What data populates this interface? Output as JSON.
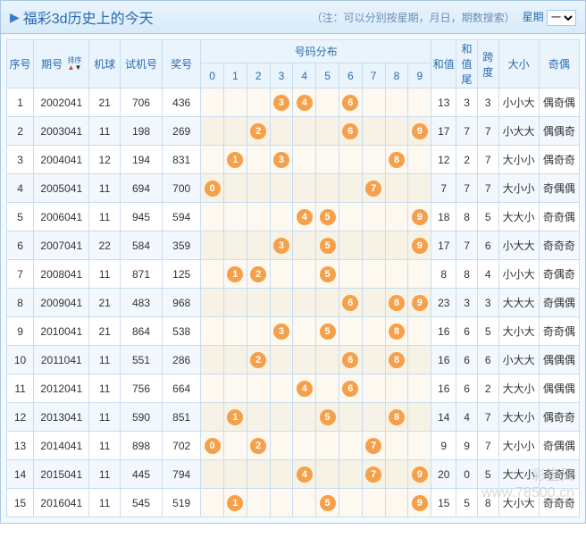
{
  "window": {
    "title": "福彩3d历史上的今天",
    "note": "（注：可以分别按星期，月日，期数搜索）",
    "weekday_label": "星期",
    "weekday_value": "一"
  },
  "colors": {
    "ball_bg": "#f5a04a",
    "header_bg": "#eaf4fd",
    "dist_bg": "#fdf9f0",
    "alt_bg": "#f2f8fd",
    "border": "#c8ddf0",
    "title_text": "#2a6bb0"
  },
  "headers": {
    "seq": "序号",
    "issue": "期号",
    "sort": "排序",
    "mball": "机球",
    "trial": "试机号",
    "prize": "奖号",
    "dist_group": "号码分布",
    "dist_nums": [
      "0",
      "1",
      "2",
      "3",
      "4",
      "5",
      "6",
      "7",
      "8",
      "9"
    ],
    "sum": "和值",
    "tail": "和值尾",
    "span": "跨度",
    "size": "大小",
    "oe": "奇偶"
  },
  "rows": [
    {
      "seq": 1,
      "issue": "2002041",
      "mball": 21,
      "trial": "706",
      "prize": "436",
      "balls": [
        4,
        3,
        6
      ],
      "sum": 13,
      "tail": 3,
      "span": 3,
      "size": "小小大",
      "oe": "偶奇偶"
    },
    {
      "seq": 2,
      "issue": "2003041",
      "mball": 11,
      "trial": "198",
      "prize": "269",
      "balls": [
        2,
        6,
        9
      ],
      "sum": 17,
      "tail": 7,
      "span": 7,
      "size": "小大大",
      "oe": "偶偶奇"
    },
    {
      "seq": 3,
      "issue": "2004041",
      "mball": 12,
      "trial": "194",
      "prize": "831",
      "balls": [
        8,
        3,
        1
      ],
      "sum": 12,
      "tail": 2,
      "span": 7,
      "size": "大小小",
      "oe": "偶奇奇"
    },
    {
      "seq": 4,
      "issue": "2005041",
      "mball": 11,
      "trial": "694",
      "prize": "700",
      "balls": [
        7,
        0,
        0
      ],
      "sum": 7,
      "tail": 7,
      "span": 7,
      "size": "大小小",
      "oe": "奇偶偶"
    },
    {
      "seq": 5,
      "issue": "2006041",
      "mball": 11,
      "trial": "945",
      "prize": "594",
      "balls": [
        5,
        9,
        4
      ],
      "sum": 18,
      "tail": 8,
      "span": 5,
      "size": "大大小",
      "oe": "奇奇偶"
    },
    {
      "seq": 6,
      "issue": "2007041",
      "mball": 22,
      "trial": "584",
      "prize": "359",
      "balls": [
        3,
        5,
        9
      ],
      "sum": 17,
      "tail": 7,
      "span": 6,
      "size": "小大大",
      "oe": "奇奇奇"
    },
    {
      "seq": 7,
      "issue": "2008041",
      "mball": 11,
      "trial": "871",
      "prize": "125",
      "balls": [
        1,
        2,
        5
      ],
      "sum": 8,
      "tail": 8,
      "span": 4,
      "size": "小小大",
      "oe": "奇偶奇"
    },
    {
      "seq": 8,
      "issue": "2009041",
      "mball": 21,
      "trial": "483",
      "prize": "968",
      "balls": [
        9,
        6,
        8
      ],
      "sum": 23,
      "tail": 3,
      "span": 3,
      "size": "大大大",
      "oe": "奇偶偶"
    },
    {
      "seq": 9,
      "issue": "2010041",
      "mball": 21,
      "trial": "864",
      "prize": "538",
      "balls": [
        5,
        3,
        8
      ],
      "sum": 16,
      "tail": 6,
      "span": 5,
      "size": "大小大",
      "oe": "奇奇偶"
    },
    {
      "seq": 10,
      "issue": "2011041",
      "mball": 11,
      "trial": "551",
      "prize": "286",
      "balls": [
        2,
        8,
        6
      ],
      "sum": 16,
      "tail": 6,
      "span": 6,
      "size": "小大大",
      "oe": "偶偶偶"
    },
    {
      "seq": 11,
      "issue": "2012041",
      "mball": 11,
      "trial": "756",
      "prize": "664",
      "balls": [
        6,
        6,
        4
      ],
      "sum": 16,
      "tail": 6,
      "span": 2,
      "size": "大大小",
      "oe": "偶偶偶"
    },
    {
      "seq": 12,
      "issue": "2013041",
      "mball": 11,
      "trial": "590",
      "prize": "851",
      "balls": [
        8,
        5,
        1
      ],
      "sum": 14,
      "tail": 4,
      "span": 7,
      "size": "大大小",
      "oe": "偶奇奇"
    },
    {
      "seq": 13,
      "issue": "2014041",
      "mball": 11,
      "trial": "898",
      "prize": "702",
      "balls": [
        7,
        0,
        2
      ],
      "sum": 9,
      "tail": 9,
      "span": 7,
      "size": "大小小",
      "oe": "奇偶偶"
    },
    {
      "seq": 14,
      "issue": "2015041",
      "mball": 11,
      "trial": "445",
      "prize": "794",
      "balls": [
        7,
        9,
        4
      ],
      "sum": 20,
      "tail": 0,
      "span": 5,
      "size": "大大小",
      "oe": "奇奇偶"
    },
    {
      "seq": 15,
      "issue": "2016041",
      "mball": 11,
      "trial": "545",
      "prize": "519",
      "balls": [
        5,
        1,
        9
      ],
      "sum": 15,
      "tail": 5,
      "span": 8,
      "size": "大小大",
      "oe": "奇奇奇"
    }
  ],
  "watermark": {
    "line1": "彩宝贝",
    "line2": "www.78500.cn"
  }
}
